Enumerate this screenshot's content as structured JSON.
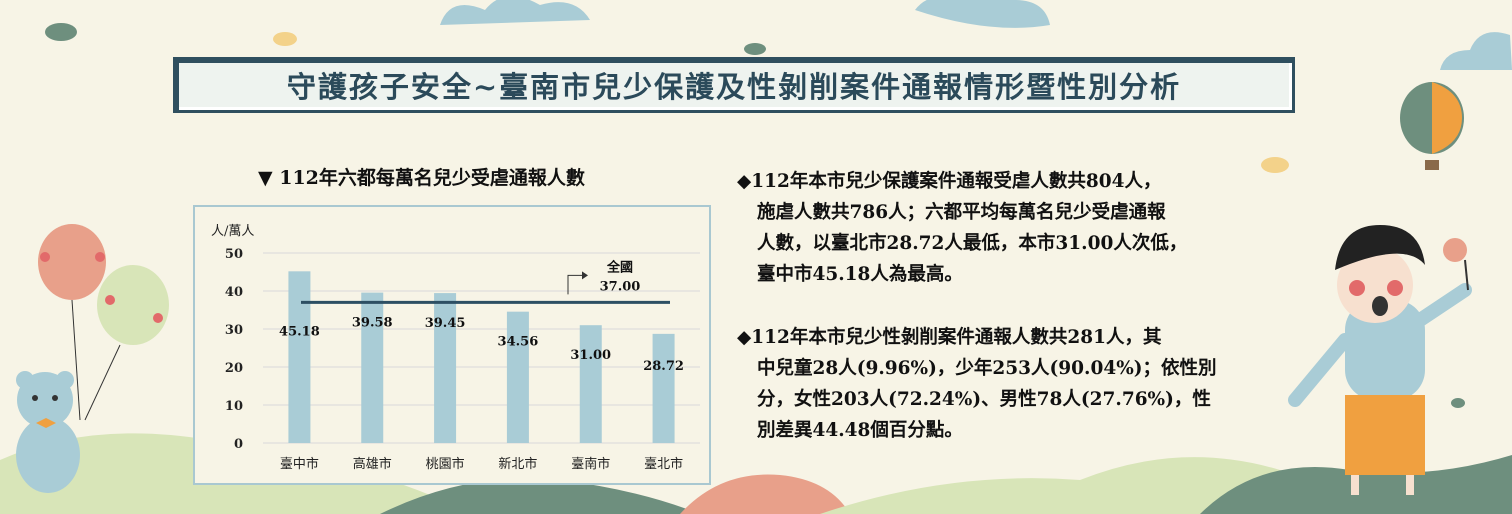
{
  "title": "守護孩子安全~臺南市兒少保護及性剝削案件通報情形暨性別分析",
  "chart_caption": "▼ 112年六都每萬名兒少受虐通報人數",
  "chart_data": {
    "type": "bar",
    "title": "112年六都每萬名兒少受虐通報人數",
    "ylabel": "人/萬人",
    "ylim": [
      0,
      50
    ],
    "yticks": [
      0,
      10,
      20,
      30,
      40,
      50
    ],
    "categories": [
      "臺中市",
      "高雄市",
      "桃園市",
      "新北市",
      "臺南市",
      "臺北市"
    ],
    "values": [
      45.18,
      39.58,
      39.45,
      34.56,
      31.0,
      28.72
    ],
    "value_labels": [
      "45.18",
      "39.58",
      "39.45",
      "34.56",
      "31.00",
      "28.72"
    ],
    "reference_line": {
      "label": "全國",
      "value": 37.0,
      "value_label": "37.00"
    },
    "bar_color": "#a9ccd6",
    "line_color": "#2d4f63"
  },
  "paragraph1": {
    "line1": "◆112年本市兒少保護案件通報受虐人數共804人，",
    "line2": "施虐人數共786人；六都平均每萬名兒少受虐通報",
    "line3": "人數，以臺北市28.72人最低，本市31.00人次低，",
    "line4": "臺中市45.18人為最高。"
  },
  "paragraph2": {
    "line1": "◆112年本市兒少性剝削案件通報人數共281人，其",
    "line2": "中兒童28人(9.96%)，少年253人(90.04%)；依性別",
    "line3": "分，女性203人(72.24%)、男性78人(27.76%)，性",
    "line4": "別差異44.48個百分點。"
  }
}
